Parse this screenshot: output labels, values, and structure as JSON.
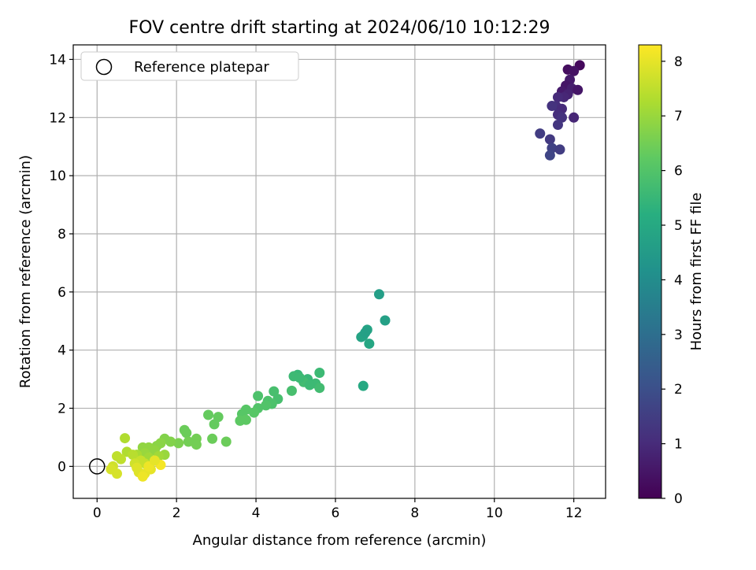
{
  "chart_data": {
    "type": "scatter",
    "title": "FOV centre drift starting at 2024/06/10 10:12:29",
    "xlabel": "Angular distance from reference (arcmin)",
    "ylabel": "Rotation from reference (arcmin)",
    "xlim": [
      -0.6,
      12.8
    ],
    "ylim": [
      -1.1,
      14.5
    ],
    "x_ticks": [
      0,
      2,
      4,
      6,
      8,
      10,
      12
    ],
    "y_ticks": [
      0,
      2,
      4,
      6,
      8,
      10,
      12,
      14
    ],
    "grid": true,
    "legend": {
      "placement": "upper-left",
      "entries": [
        "Reference platepar"
      ]
    },
    "reference_point": {
      "x": 0,
      "y": 0
    },
    "colorbar": {
      "label": "Hours from first FF file",
      "colormap": "viridis",
      "range": [
        0,
        8.3
      ],
      "ticks": [
        0,
        1,
        2,
        3,
        4,
        5,
        6,
        7,
        8
      ]
    },
    "series": [
      {
        "points": [
          {
            "x": 11.85,
            "y": 13.65,
            "h": 0.3
          },
          {
            "x": 12.15,
            "y": 13.8,
            "h": 0.2
          },
          {
            "x": 12.0,
            "y": 13.6,
            "h": 0.4
          },
          {
            "x": 11.9,
            "y": 13.3,
            "h": 0.6
          },
          {
            "x": 11.8,
            "y": 13.1,
            "h": 0.5
          },
          {
            "x": 11.95,
            "y": 13.0,
            "h": 0.7
          },
          {
            "x": 11.7,
            "y": 12.9,
            "h": 0.6
          },
          {
            "x": 11.85,
            "y": 12.8,
            "h": 0.8
          },
          {
            "x": 12.1,
            "y": 12.95,
            "h": 0.5
          },
          {
            "x": 11.75,
            "y": 12.7,
            "h": 0.9
          },
          {
            "x": 11.6,
            "y": 12.7,
            "h": 1.0
          },
          {
            "x": 11.55,
            "y": 12.4,
            "h": 1.1
          },
          {
            "x": 11.7,
            "y": 12.3,
            "h": 1.0
          },
          {
            "x": 11.45,
            "y": 12.4,
            "h": 1.2
          },
          {
            "x": 11.6,
            "y": 12.1,
            "h": 1.1
          },
          {
            "x": 11.7,
            "y": 12.0,
            "h": 1.2
          },
          {
            "x": 12.0,
            "y": 12.0,
            "h": 0.9
          },
          {
            "x": 11.6,
            "y": 11.75,
            "h": 1.3
          },
          {
            "x": 11.15,
            "y": 11.45,
            "h": 1.5
          },
          {
            "x": 11.4,
            "y": 11.25,
            "h": 1.4
          },
          {
            "x": 11.45,
            "y": 10.95,
            "h": 1.6
          },
          {
            "x": 11.65,
            "y": 10.9,
            "h": 1.5
          },
          {
            "x": 11.4,
            "y": 10.7,
            "h": 1.7
          },
          {
            "x": 7.1,
            "y": 5.92,
            "h": 4.6
          },
          {
            "x": 7.25,
            "y": 5.02,
            "h": 4.7
          },
          {
            "x": 6.8,
            "y": 4.7,
            "h": 4.8
          },
          {
            "x": 6.7,
            "y": 4.5,
            "h": 4.9
          },
          {
            "x": 6.65,
            "y": 4.45,
            "h": 4.8
          },
          {
            "x": 6.75,
            "y": 4.6,
            "h": 4.7
          },
          {
            "x": 6.85,
            "y": 4.22,
            "h": 4.9
          },
          {
            "x": 6.7,
            "y": 2.77,
            "h": 5.0
          },
          {
            "x": 5.6,
            "y": 3.22,
            "h": 5.6
          },
          {
            "x": 5.05,
            "y": 3.15,
            "h": 5.5
          },
          {
            "x": 4.95,
            "y": 3.1,
            "h": 5.6
          },
          {
            "x": 5.3,
            "y": 3.0,
            "h": 5.5
          },
          {
            "x": 5.5,
            "y": 2.85,
            "h": 5.6
          },
          {
            "x": 5.2,
            "y": 2.9,
            "h": 5.7
          },
          {
            "x": 5.1,
            "y": 3.05,
            "h": 5.6
          },
          {
            "x": 5.6,
            "y": 2.7,
            "h": 5.7
          },
          {
            "x": 5.35,
            "y": 2.8,
            "h": 5.6
          },
          {
            "x": 4.9,
            "y": 2.6,
            "h": 5.8
          },
          {
            "x": 4.45,
            "y": 2.58,
            "h": 5.8
          },
          {
            "x": 4.05,
            "y": 2.42,
            "h": 5.9
          },
          {
            "x": 4.55,
            "y": 2.32,
            "h": 5.8
          },
          {
            "x": 4.3,
            "y": 2.25,
            "h": 5.9
          },
          {
            "x": 4.4,
            "y": 2.15,
            "h": 5.9
          },
          {
            "x": 4.25,
            "y": 2.1,
            "h": 6.0
          },
          {
            "x": 4.05,
            "y": 2.0,
            "h": 6.0
          },
          {
            "x": 3.95,
            "y": 1.85,
            "h": 6.1
          },
          {
            "x": 3.75,
            "y": 1.95,
            "h": 6.1
          },
          {
            "x": 3.65,
            "y": 1.8,
            "h": 6.1
          },
          {
            "x": 3.75,
            "y": 1.6,
            "h": 6.2
          },
          {
            "x": 3.6,
            "y": 1.57,
            "h": 6.2
          },
          {
            "x": 2.8,
            "y": 1.77,
            "h": 6.3
          },
          {
            "x": 3.05,
            "y": 1.7,
            "h": 6.3
          },
          {
            "x": 2.95,
            "y": 1.45,
            "h": 6.3
          },
          {
            "x": 2.2,
            "y": 1.25,
            "h": 6.4
          },
          {
            "x": 2.25,
            "y": 1.15,
            "h": 6.4
          },
          {
            "x": 2.9,
            "y": 0.95,
            "h": 6.4
          },
          {
            "x": 3.25,
            "y": 0.85,
            "h": 6.4
          },
          {
            "x": 2.5,
            "y": 0.95,
            "h": 6.5
          },
          {
            "x": 2.3,
            "y": 0.85,
            "h": 6.5
          },
          {
            "x": 2.5,
            "y": 0.75,
            "h": 6.5
          },
          {
            "x": 2.05,
            "y": 0.8,
            "h": 6.6
          },
          {
            "x": 1.85,
            "y": 0.85,
            "h": 6.7
          },
          {
            "x": 1.7,
            "y": 0.95,
            "h": 6.7
          },
          {
            "x": 1.6,
            "y": 0.8,
            "h": 6.8
          },
          {
            "x": 1.5,
            "y": 0.7,
            "h": 6.8
          },
          {
            "x": 1.3,
            "y": 0.65,
            "h": 6.9
          },
          {
            "x": 1.15,
            "y": 0.65,
            "h": 6.9
          },
          {
            "x": 1.7,
            "y": 0.4,
            "h": 7.0
          },
          {
            "x": 1.45,
            "y": 0.55,
            "h": 6.9
          },
          {
            "x": 1.2,
            "y": 0.45,
            "h": 7.0
          },
          {
            "x": 1.55,
            "y": 0.35,
            "h": 7.1
          },
          {
            "x": 1.3,
            "y": 0.3,
            "h": 7.1
          },
          {
            "x": 1.0,
            "y": 0.4,
            "h": 7.2
          },
          {
            "x": 0.7,
            "y": 0.97,
            "h": 7.3
          },
          {
            "x": 0.75,
            "y": 0.5,
            "h": 7.3
          },
          {
            "x": 0.9,
            "y": 0.4,
            "h": 7.4
          },
          {
            "x": 0.5,
            "y": 0.35,
            "h": 7.5
          },
          {
            "x": 0.6,
            "y": 0.25,
            "h": 7.5
          },
          {
            "x": 1.1,
            "y": 0.2,
            "h": 7.6
          },
          {
            "x": 1.2,
            "y": 0.1,
            "h": 7.6
          },
          {
            "x": 0.95,
            "y": 0.1,
            "h": 7.7
          },
          {
            "x": 0.4,
            "y": 0.0,
            "h": 7.7
          },
          {
            "x": 0.35,
            "y": -0.1,
            "h": 7.8
          },
          {
            "x": 0.5,
            "y": -0.25,
            "h": 7.8
          },
          {
            "x": 1.0,
            "y": -0.05,
            "h": 7.9
          },
          {
            "x": 1.05,
            "y": -0.2,
            "h": 7.9
          },
          {
            "x": 1.2,
            "y": -0.25,
            "h": 8.0
          },
          {
            "x": 1.35,
            "y": -0.1,
            "h": 8.0
          },
          {
            "x": 1.15,
            "y": -0.35,
            "h": 8.1
          },
          {
            "x": 1.6,
            "y": 0.05,
            "h": 8.2
          },
          {
            "x": 1.3,
            "y": 0.0,
            "h": 8.1
          },
          {
            "x": 1.45,
            "y": 0.2,
            "h": 8.0
          }
        ]
      }
    ]
  }
}
